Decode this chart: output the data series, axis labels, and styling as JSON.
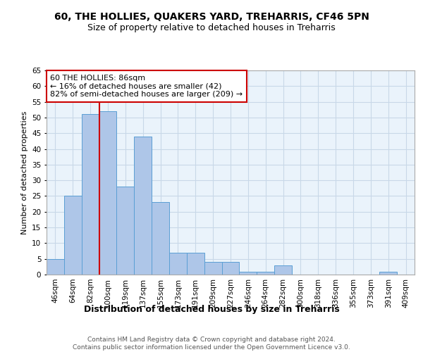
{
  "title1": "60, THE HOLLIES, QUAKERS YARD, TREHARRIS, CF46 5PN",
  "title2": "Size of property relative to detached houses in Treharris",
  "xlabel": "Distribution of detached houses by size in Treharris",
  "ylabel": "Number of detached properties",
  "categories": [
    "46sqm",
    "64sqm",
    "82sqm",
    "100sqm",
    "119sqm",
    "137sqm",
    "155sqm",
    "173sqm",
    "191sqm",
    "209sqm",
    "227sqm",
    "246sqm",
    "264sqm",
    "282sqm",
    "300sqm",
    "318sqm",
    "336sqm",
    "355sqm",
    "373sqm",
    "391sqm",
    "409sqm"
  ],
  "values": [
    5,
    25,
    51,
    52,
    28,
    44,
    23,
    7,
    7,
    4,
    4,
    1,
    1,
    3,
    0,
    0,
    0,
    0,
    0,
    1,
    0
  ],
  "bar_color": "#aec6e8",
  "bar_edge_color": "#5a9fd4",
  "bar_width": 1.0,
  "vline_x": 2.5,
  "vline_color": "#cc0000",
  "annotation_text": "60 THE HOLLIES: 86sqm\n← 16% of detached houses are smaller (42)\n82% of semi-detached houses are larger (209) →",
  "annotation_box_color": "#ffffff",
  "annotation_box_edge": "#cc0000",
  "ylim": [
    0,
    65
  ],
  "yticks": [
    0,
    5,
    10,
    15,
    20,
    25,
    30,
    35,
    40,
    45,
    50,
    55,
    60,
    65
  ],
  "grid_color": "#c8d8e8",
  "bg_color": "#eaf3fb",
  "footer": "Contains HM Land Registry data © Crown copyright and database right 2024.\nContains public sector information licensed under the Open Government Licence v3.0.",
  "title1_fontsize": 10,
  "title2_fontsize": 9,
  "xlabel_fontsize": 9,
  "ylabel_fontsize": 8,
  "tick_fontsize": 7.5,
  "annotation_fontsize": 8,
  "footer_fontsize": 6.5
}
